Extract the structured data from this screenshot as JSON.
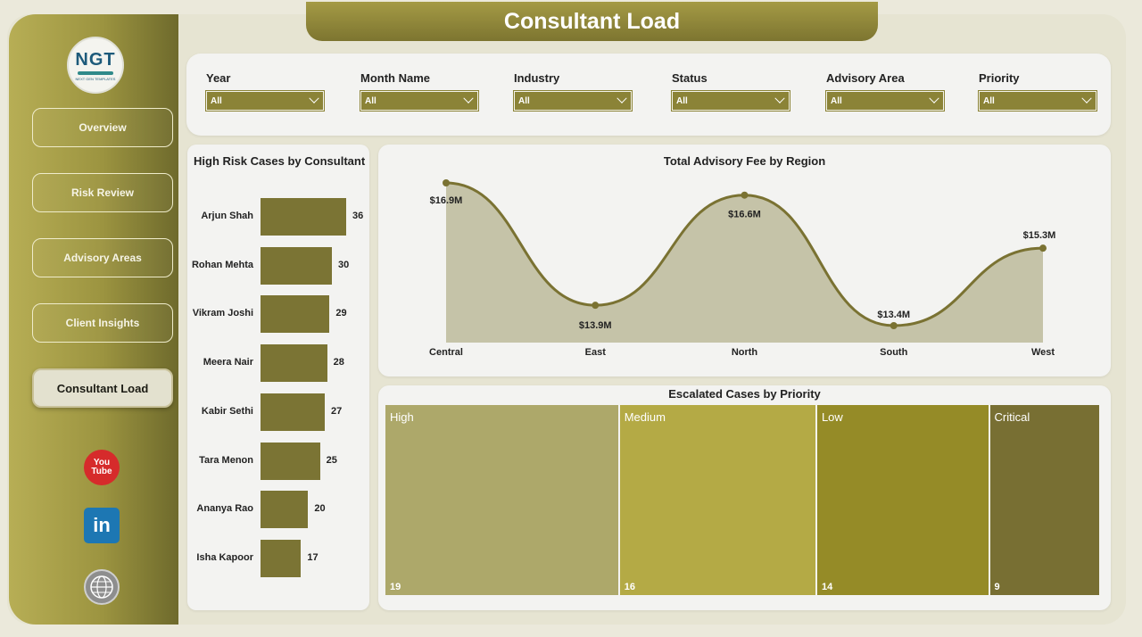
{
  "page_title": "Consultant Load",
  "logo": {
    "text": "NGT",
    "subtext": "NEXT GEN TEMPLATES"
  },
  "nav": [
    {
      "label": "Overview",
      "active": false
    },
    {
      "label": "Risk Review",
      "active": false
    },
    {
      "label": "Advisory Areas",
      "active": false
    },
    {
      "label": "Client Insights",
      "active": false
    },
    {
      "label": "Consultant Load",
      "active": true
    }
  ],
  "social": {
    "youtube_top": "You",
    "youtube_bottom": "Tube",
    "linkedin": "in"
  },
  "filters": [
    {
      "label": "Year",
      "value": "All"
    },
    {
      "label": "Month Name",
      "value": "All"
    },
    {
      "label": "Industry",
      "value": "All"
    },
    {
      "label": "Status",
      "value": "All"
    },
    {
      "label": "Advisory Area",
      "value": "All"
    },
    {
      "label": "Priority",
      "value": "All"
    }
  ],
  "colors": {
    "bar": "#7b7434",
    "line": "#7a7232",
    "area": "#c5c3a8",
    "treemap": [
      "#ada86a",
      "#b4aa45",
      "#958b27",
      "#786f33"
    ]
  },
  "chart_data": [
    {
      "type": "bar",
      "title": "High Risk Cases by Consultant",
      "orientation": "horizontal",
      "categories": [
        "Arjun Shah",
        "Rohan Mehta",
        "Vikram Joshi",
        "Meera Nair",
        "Kabir Sethi",
        "Tara Menon",
        "Ananya Rao",
        "Isha Kapoor"
      ],
      "values": [
        36,
        30,
        29,
        28,
        27,
        25,
        20,
        17
      ],
      "labels": [
        "36",
        "30",
        "29",
        "28",
        "27",
        "25",
        "20",
        "17"
      ]
    },
    {
      "type": "area",
      "title": "Total Advisory Fee by Region",
      "categories": [
        "Central",
        "East",
        "North",
        "South",
        "West"
      ],
      "values": [
        16.9,
        13.9,
        16.6,
        13.4,
        15.3
      ],
      "labels": [
        "$16.9M",
        "$13.9M",
        "$16.6M",
        "$13.4M",
        "$15.3M"
      ],
      "unit": "$M"
    },
    {
      "type": "treemap",
      "title": "Escalated Cases by Priority",
      "categories": [
        "High",
        "Medium",
        "Low",
        "Critical"
      ],
      "values": [
        19,
        16,
        14,
        9
      ],
      "labels": [
        "19",
        "16",
        "14",
        "9"
      ]
    }
  ]
}
